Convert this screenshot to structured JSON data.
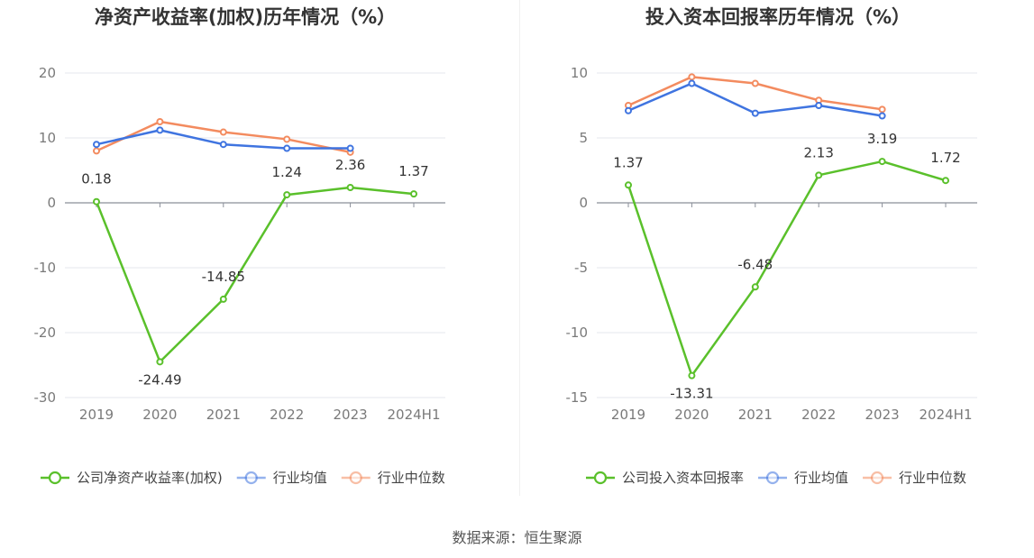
{
  "chart_data": [
    {
      "type": "line",
      "title": "净资产收益率(加权)历年情况（%）",
      "categories": [
        "2019",
        "2020",
        "2021",
        "2022",
        "2023",
        "2024H1"
      ],
      "ylim": [
        -30,
        20
      ],
      "yticks": [
        20,
        10,
        0,
        -10,
        -20,
        -30
      ],
      "grid": true,
      "legend_position": "bottom",
      "series": [
        {
          "name": "公司净资产收益率(加权)",
          "color": "#5ac02b",
          "values": [
            0.18,
            -24.49,
            -14.85,
            1.24,
            2.36,
            1.37
          ],
          "labels": [
            "0.18",
            "-24.49",
            "-14.85",
            "1.24",
            "2.36",
            "1.37"
          ]
        },
        {
          "name": "行业均值",
          "color": "#3f74e0",
          "values": [
            9.0,
            11.2,
            9.0,
            8.4,
            8.4,
            null
          ]
        },
        {
          "name": "行业中位数",
          "color": "#f38b5f",
          "values": [
            8.0,
            12.5,
            10.9,
            9.8,
            7.8,
            null
          ]
        }
      ]
    },
    {
      "type": "line",
      "title": "投入资本回报率历年情况（%）",
      "categories": [
        "2019",
        "2020",
        "2021",
        "2022",
        "2023",
        "2024H1"
      ],
      "ylim": [
        -15,
        10
      ],
      "yticks": [
        10,
        5,
        0,
        -5,
        -10,
        -15
      ],
      "grid": true,
      "legend_position": "bottom",
      "series": [
        {
          "name": "公司投入资本回报率",
          "color": "#5ac02b",
          "values": [
            1.37,
            -13.31,
            -6.48,
            2.13,
            3.19,
            1.72
          ],
          "labels": [
            "1.37",
            "-13.31",
            "-6.48",
            "2.13",
            "3.19",
            "1.72"
          ]
        },
        {
          "name": "行业均值",
          "color": "#3f74e0",
          "values": [
            7.1,
            9.2,
            6.9,
            7.5,
            6.7,
            null
          ]
        },
        {
          "name": "行业中位数",
          "color": "#f38b5f",
          "values": [
            7.5,
            9.7,
            9.2,
            7.9,
            7.2,
            null
          ]
        }
      ]
    }
  ],
  "footer": {
    "source": "数据来源：恒生聚源"
  }
}
